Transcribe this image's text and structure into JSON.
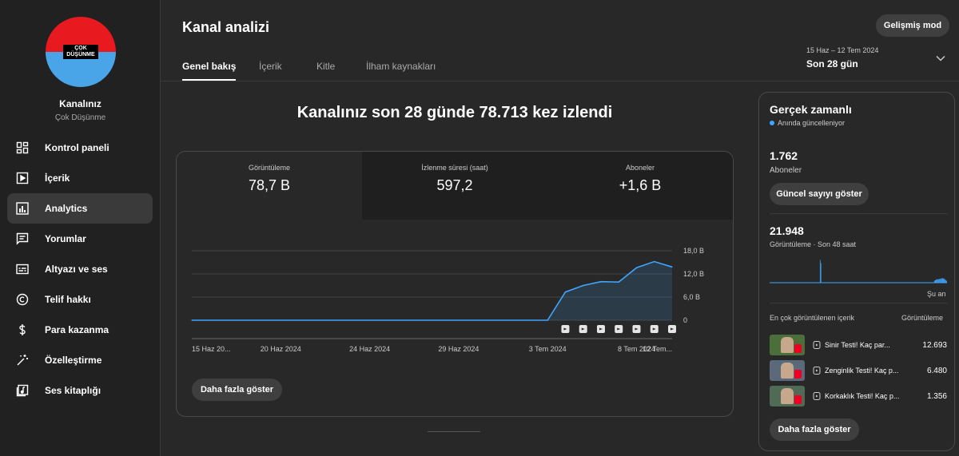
{
  "channel": {
    "avatar_text": "ÇOK DÜŞÜNME",
    "name": "Kanalınız",
    "handle": "Çok Düşünme"
  },
  "sidebar": {
    "items": [
      {
        "label": "Kontrol paneli",
        "icon": "dashboard-icon",
        "active": false
      },
      {
        "label": "İçerik",
        "icon": "content-icon",
        "active": false
      },
      {
        "label": "Analytics",
        "icon": "analytics-icon",
        "active": true
      },
      {
        "label": "Yorumlar",
        "icon": "comments-icon",
        "active": false
      },
      {
        "label": "Altyazı ve ses",
        "icon": "subtitles-icon",
        "active": false
      },
      {
        "label": "Telif hakkı",
        "icon": "copyright-icon",
        "active": false
      },
      {
        "label": "Para kazanma",
        "icon": "dollar-icon",
        "active": false
      },
      {
        "label": "Özelleştirme",
        "icon": "magic-wand-icon",
        "active": false
      },
      {
        "label": "Ses kitaplığı",
        "icon": "audio-library-icon",
        "active": false
      }
    ]
  },
  "header": {
    "title": "Kanal analizi",
    "advanced_mode": "Gelişmiş mod",
    "tabs": [
      "Genel bakış",
      "İçerik",
      "Kitle",
      "İlham kaynakları"
    ],
    "date_range": "15 Haz – 12 Tem 2024",
    "period": "Son 28 gün"
  },
  "overview": {
    "headline": "Kanalınız son 28 günde 78.713 kez izlendi",
    "metrics": [
      {
        "label": "Görüntüleme",
        "value": "78,7 B"
      },
      {
        "label": "İzlenme süresi (saat)",
        "value": "597,2"
      },
      {
        "label": "Aboneler",
        "value": "+1,6 B"
      }
    ],
    "show_more": "Daha fazla göster"
  },
  "chart_data": {
    "type": "area",
    "x_tick_labels": [
      "15 Haz 20...",
      "20 Haz 2024",
      "24 Haz 2024",
      "29 Haz 2024",
      "3 Tem 2024",
      "8 Tem 2024",
      "12 Tem..."
    ],
    "y_tick_labels": [
      "18,0 B",
      "12,0 B",
      "6,0 B",
      "0"
    ],
    "ylim": [
      0,
      18000
    ],
    "x": [
      "15 Haz",
      "16 Haz",
      "17 Haz",
      "18 Haz",
      "19 Haz",
      "20 Haz",
      "21 Haz",
      "22 Haz",
      "23 Haz",
      "24 Haz",
      "25 Haz",
      "26 Haz",
      "27 Haz",
      "28 Haz",
      "29 Haz",
      "30 Haz",
      "1 Tem",
      "2 Tem",
      "3 Tem",
      "4 Tem",
      "5 Tem",
      "6 Tem",
      "7 Tem",
      "8 Tem",
      "9 Tem",
      "10 Tem",
      "11 Tem",
      "12 Tem"
    ],
    "values": [
      0,
      0,
      0,
      0,
      0,
      0,
      0,
      0,
      0,
      0,
      0,
      0,
      0,
      0,
      0,
      0,
      0,
      0,
      0,
      0,
      0,
      7300,
      9000,
      10000,
      9900,
      13600,
      15200,
      13800
    ],
    "upload_markers": [
      "6 Tem",
      "7 Tem",
      "8 Tem",
      "9 Tem",
      "10 Tem",
      "11 Tem",
      "12 Tem"
    ],
    "line_color": "#3ea6ff",
    "grid": true
  },
  "realtime": {
    "title": "Gerçek zamanlı",
    "live": "Anında güncelleniyor",
    "subscribers_value": "1.762",
    "subscribers_label": "Aboneler",
    "live_count_button": "Güncel sayıyı göster",
    "views_value": "21.948",
    "views_label": "Görüntüleme · Son 48 saat",
    "now_label": "Şu an",
    "mini_bars": [
      0,
      0,
      0,
      0,
      0,
      0,
      0,
      0,
      0,
      0,
      0,
      0,
      0,
      0,
      0,
      0,
      0,
      0,
      0,
      0,
      0,
      0,
      0,
      0,
      0,
      0,
      0,
      0,
      0,
      0,
      0,
      0,
      0,
      0,
      0,
      0,
      0,
      2,
      0,
      0,
      0,
      0,
      0,
      0,
      0,
      0,
      0,
      0,
      0,
      0,
      0,
      0,
      0,
      0,
      0,
      0,
      0,
      0,
      0,
      0,
      0,
      0,
      0,
      0,
      0,
      0,
      0,
      0,
      0,
      0,
      95,
      82,
      0,
      0,
      0,
      0,
      0,
      0,
      0,
      0,
      0,
      0,
      0,
      0,
      0,
      0,
      0,
      0,
      0,
      0,
      0,
      0,
      0,
      0,
      0,
      0,
      0,
      0,
      0,
      0,
      0,
      0,
      0,
      0,
      0,
      0,
      0,
      0,
      0,
      0,
      0,
      0,
      0,
      0,
      0,
      0,
      0,
      0,
      0,
      0,
      0,
      0,
      0,
      0,
      0,
      0,
      0,
      0,
      0,
      0,
      0,
      0,
      0,
      0,
      0,
      0,
      0,
      0,
      0,
      0,
      0,
      0,
      0,
      0,
      0,
      0,
      0,
      0,
      0,
      0,
      0,
      0,
      0,
      0,
      0,
      0,
      0,
      0,
      0,
      0,
      0,
      0,
      0,
      0,
      0,
      0,
      0,
      0,
      0,
      0,
      0,
      0,
      0,
      0,
      0,
      0,
      0,
      0,
      0,
      0,
      0,
      0,
      0,
      0,
      0,
      0,
      0,
      0,
      0,
      0,
      0,
      0,
      0,
      0,
      0,
      0,
      0,
      0,
      0,
      0,
      0,
      0,
      0,
      0,
      0,
      0,
      0,
      0,
      0,
      0,
      0,
      0,
      0,
      0,
      0,
      0,
      0,
      0,
      0,
      0,
      0,
      0,
      0,
      0,
      0,
      0,
      0,
      0,
      0,
      8,
      10,
      12,
      14,
      14,
      15,
      14,
      16,
      17,
      16,
      18,
      20,
      17,
      18,
      15,
      14,
      10,
      8
    ],
    "top_label": "En çok görüntülenen içerik",
    "top_col": "Görüntüleme",
    "top_items": [
      {
        "title": "Sinir Testi! Kaç par...",
        "views": "12.693"
      },
      {
        "title": "Zenginlik Testi! Kaç p...",
        "views": "6.480"
      },
      {
        "title": "Korkaklık Testi! Kaç p...",
        "views": "1.356"
      }
    ],
    "show_more": "Daha fazla göster"
  }
}
